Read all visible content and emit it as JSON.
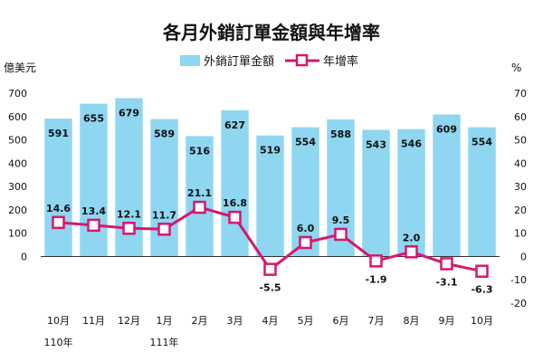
{
  "chart_data": {
    "type": "bar+line",
    "title": "各月外銷訂單金額與年增率",
    "left_unit": "億美元",
    "right_unit": "%",
    "categories": [
      "10月",
      "11月",
      "12月",
      "1月",
      "2月",
      "3月",
      "4月",
      "5月",
      "6月",
      "7月",
      "8月",
      "9月",
      "10月"
    ],
    "year_labels": [
      {
        "index": 0,
        "text": "110年"
      },
      {
        "index": 3,
        "text": "111年"
      }
    ],
    "series": [
      {
        "name": "外銷訂單金額",
        "type": "bar",
        "axis": "left",
        "color": "#8fd6f0",
        "values": [
          591,
          655,
          679,
          589,
          516,
          627,
          519,
          554,
          588,
          543,
          546,
          609,
          554
        ]
      },
      {
        "name": "年增率",
        "type": "line",
        "axis": "right",
        "color": "#d6176f",
        "values": [
          14.6,
          13.4,
          12.1,
          11.7,
          21.1,
          16.8,
          -5.5,
          6.0,
          9.5,
          -1.9,
          2.0,
          -3.1,
          -6.3
        ],
        "labels": [
          "14.6",
          "13.4",
          "12.1",
          "11.7",
          "21.1",
          "16.8",
          "-5.5",
          "6.0",
          "9.5",
          "-1.9",
          "2.0",
          "-3.1",
          "-6.3"
        ]
      }
    ],
    "left_axis": {
      "ticks": [
        "0",
        "100",
        "200",
        "300",
        "400",
        "500",
        "600",
        "700"
      ],
      "ylim": [
        -200,
        700
      ]
    },
    "right_axis": {
      "ticks": [
        "-20",
        "-10",
        "0",
        "10",
        "20",
        "30",
        "40",
        "50",
        "60",
        "70"
      ],
      "ylim": [
        -20,
        70
      ]
    },
    "grid": false,
    "legend_position": "top-center"
  }
}
